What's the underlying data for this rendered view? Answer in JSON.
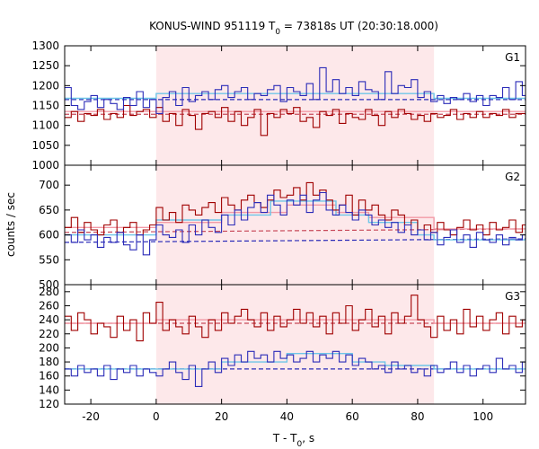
{
  "chart_data": {
    "type": "line",
    "title_main": "KONUS-WIND 951119 T",
    "title_sub": "0",
    "title_rest": " = 73818s UT (20:30:18.000)",
    "xlabel_main": "T - T",
    "xlabel_sub": "0",
    "xlabel_rest": ", s",
    "ylabel": "counts / sec",
    "xlim": [
      -28,
      113
    ],
    "xticks": [
      -20,
      0,
      20,
      40,
      60,
      80,
      100
    ],
    "x_tick_labels": [
      "-20",
      "0",
      "20",
      "40",
      "60",
      "80",
      "100"
    ],
    "shaded_interval": [
      0,
      85
    ],
    "grid": false,
    "legend": "none",
    "colors": {
      "data_red": "#a00000",
      "data_blue": "#2b2bb8",
      "bg_red": "#c84a5a",
      "bg_blue": "#2b2bb8",
      "fit_pink": "#f29aa6",
      "fit_cyan": "#6ec6e8",
      "shade": "#fde8ea"
    },
    "panels": [
      {
        "name": "G1",
        "ylim": [
          1000,
          1300
        ],
        "yticks": [
          1000,
          1050,
          1100,
          1150,
          1200,
          1250,
          1300
        ],
        "y_tick_labels": [
          "1000",
          "1050",
          "1100",
          "1150",
          "1200",
          "1250",
          "1300"
        ],
        "red_x": [
          -28,
          -26,
          -24,
          -22,
          -20,
          -18,
          -16,
          -14,
          -12,
          -10,
          -8,
          -6,
          -4,
          -2,
          0,
          2,
          4,
          6,
          8,
          10,
          12,
          14,
          16,
          18,
          20,
          22,
          24,
          26,
          28,
          30,
          32,
          34,
          36,
          38,
          40,
          42,
          44,
          46,
          48,
          50,
          52,
          54,
          56,
          58,
          60,
          62,
          64,
          66,
          68,
          70,
          72,
          74,
          76,
          78,
          80,
          82,
          84,
          86,
          88,
          90,
          92,
          94,
          96,
          98,
          100,
          102,
          104,
          106,
          108,
          110,
          112
        ],
        "red_y": [
          1120,
          1135,
          1110,
          1130,
          1125,
          1140,
          1115,
          1130,
          1120,
          1150,
          1125,
          1135,
          1140,
          1120,
          1145,
          1110,
          1130,
          1100,
          1140,
          1125,
          1090,
          1130,
          1135,
          1120,
          1145,
          1110,
          1135,
          1100,
          1120,
          1140,
          1075,
          1130,
          1120,
          1140,
          1130,
          1145,
          1110,
          1120,
          1095,
          1135,
          1125,
          1140,
          1105,
          1130,
          1120,
          1115,
          1140,
          1125,
          1100,
          1135,
          1120,
          1140,
          1130,
          1115,
          1125,
          1110,
          1130,
          1120,
          1125,
          1140,
          1115,
          1130,
          1120,
          1135,
          1120,
          1130,
          1125,
          1140,
          1120,
          1130,
          1130
        ],
        "blue_x": [
          -28,
          -26,
          -24,
          -22,
          -20,
          -18,
          -16,
          -14,
          -12,
          -10,
          -8,
          -6,
          -4,
          -2,
          0,
          2,
          4,
          6,
          8,
          10,
          12,
          14,
          16,
          18,
          20,
          22,
          24,
          26,
          28,
          30,
          32,
          34,
          36,
          38,
          40,
          42,
          44,
          46,
          48,
          50,
          52,
          54,
          56,
          58,
          60,
          62,
          64,
          66,
          68,
          70,
          72,
          74,
          76,
          78,
          80,
          82,
          84,
          86,
          88,
          90,
          92,
          94,
          96,
          98,
          100,
          102,
          104,
          106,
          108,
          110,
          112
        ],
        "blue_y": [
          1195,
          1150,
          1140,
          1160,
          1175,
          1145,
          1165,
          1155,
          1140,
          1170,
          1150,
          1185,
          1145,
          1165,
          1130,
          1170,
          1185,
          1150,
          1195,
          1160,
          1175,
          1185,
          1165,
          1190,
          1200,
          1170,
          1185,
          1195,
          1165,
          1180,
          1175,
          1190,
          1200,
          1160,
          1195,
          1185,
          1175,
          1205,
          1165,
          1245,
          1185,
          1215,
          1180,
          1195,
          1175,
          1210,
          1190,
          1185,
          1165,
          1235,
          1180,
          1200,
          1195,
          1215,
          1170,
          1185,
          1160,
          1175,
          1155,
          1170,
          1165,
          1180,
          1160,
          1175,
          1150,
          1175,
          1170,
          1195,
          1165,
          1210,
          1175
        ],
        "red_bg": [
          1128,
          1128
        ],
        "blue_bg": [
          1165,
          1165
        ],
        "red_fit": [
          [
            -28,
            1135
          ],
          [
            113,
            1135
          ]
        ],
        "cyan_fit": [
          [
            -28,
            1168
          ],
          [
            0,
            1168
          ],
          [
            0,
            1180
          ],
          [
            85,
            1180
          ],
          [
            85,
            1168
          ],
          [
            113,
            1168
          ]
        ]
      },
      {
        "name": "G2",
        "ylim": [
          500,
          740
        ],
        "yticks": [
          500,
          550,
          600,
          650,
          700
        ],
        "y_tick_labels": [
          "500",
          "550",
          "600",
          "650",
          "700"
        ],
        "red_x": [
          -28,
          -26,
          -24,
          -22,
          -20,
          -18,
          -16,
          -14,
          -12,
          -10,
          -8,
          -6,
          -4,
          -2,
          0,
          2,
          4,
          6,
          8,
          10,
          12,
          14,
          16,
          18,
          20,
          22,
          24,
          26,
          28,
          30,
          32,
          34,
          36,
          38,
          40,
          42,
          44,
          46,
          48,
          50,
          52,
          54,
          56,
          58,
          60,
          62,
          64,
          66,
          68,
          70,
          72,
          74,
          76,
          78,
          80,
          82,
          84,
          86,
          88,
          90,
          92,
          94,
          96,
          98,
          100,
          102,
          104,
          106,
          108,
          110,
          112
        ],
        "red_y": [
          615,
          635,
          605,
          625,
          610,
          600,
          620,
          630,
          605,
          615,
          625,
          600,
          610,
          620,
          655,
          630,
          645,
          625,
          660,
          650,
          640,
          655,
          665,
          645,
          675,
          660,
          650,
          670,
          680,
          665,
          655,
          670,
          690,
          675,
          680,
          695,
          670,
          705,
          680,
          690,
          670,
          650,
          660,
          680,
          640,
          670,
          650,
          660,
          640,
          630,
          650,
          640,
          620,
          630,
          610,
          620,
          605,
          625,
          610,
          600,
          615,
          630,
          610,
          620,
          600,
          625,
          610,
          615,
          630,
          605,
          620
        ],
        "blue_x": [
          -28,
          -26,
          -24,
          -22,
          -20,
          -18,
          -16,
          -14,
          -12,
          -10,
          -8,
          -6,
          -4,
          -2,
          0,
          2,
          4,
          6,
          8,
          10,
          12,
          14,
          16,
          18,
          20,
          22,
          24,
          26,
          28,
          30,
          32,
          34,
          36,
          38,
          40,
          42,
          44,
          46,
          48,
          50,
          52,
          54,
          56,
          58,
          60,
          62,
          64,
          66,
          68,
          70,
          72,
          74,
          76,
          78,
          80,
          82,
          84,
          86,
          88,
          90,
          92,
          94,
          96,
          98,
          100,
          102,
          104,
          106,
          108,
          110,
          112
        ],
        "blue_y": [
          600,
          585,
          610,
          590,
          600,
          575,
          595,
          585,
          605,
          580,
          570,
          600,
          560,
          590,
          620,
          600,
          595,
          610,
          585,
          620,
          600,
          630,
          615,
          605,
          640,
          620,
          650,
          630,
          655,
          665,
          645,
          680,
          660,
          640,
          670,
          660,
          680,
          645,
          670,
          685,
          650,
          640,
          660,
          645,
          630,
          650,
          640,
          620,
          630,
          615,
          625,
          605,
          620,
          600,
          610,
          590,
          605,
          580,
          595,
          610,
          585,
          600,
          575,
          605,
          590,
          585,
          600,
          580,
          595,
          590,
          600
        ],
        "red_bg": [
          605,
          612
        ],
        "blue_bg": [
          585,
          592
        ],
        "red_fit": [
          [
            -28,
            615
          ],
          [
            0,
            615
          ],
          [
            0,
            625
          ],
          [
            20,
            625
          ],
          [
            20,
            645
          ],
          [
            40,
            645
          ],
          [
            40,
            660
          ],
          [
            55,
            660
          ],
          [
            55,
            645
          ],
          [
            65,
            645
          ],
          [
            65,
            635
          ],
          [
            85,
            635
          ],
          [
            85,
            612
          ],
          [
            113,
            612
          ]
        ],
        "cyan_fit": [
          [
            -28,
            600
          ],
          [
            0,
            600
          ],
          [
            0,
            630
          ],
          [
            20,
            630
          ],
          [
            20,
            640
          ],
          [
            35,
            640
          ],
          [
            35,
            668
          ],
          [
            55,
            668
          ],
          [
            55,
            640
          ],
          [
            65,
            640
          ],
          [
            65,
            625
          ],
          [
            80,
            625
          ],
          [
            80,
            600
          ],
          [
            85,
            600
          ],
          [
            85,
            590
          ],
          [
            113,
            590
          ]
        ]
      },
      {
        "name": "G3",
        "ylim": [
          120,
          290
        ],
        "yticks": [
          120,
          140,
          160,
          180,
          200,
          220,
          240,
          260,
          280
        ],
        "y_tick_labels": [
          "120",
          "140",
          "160",
          "180",
          "200",
          "220",
          "240",
          "260",
          "280"
        ],
        "red_x": [
          -28,
          -26,
          -24,
          -22,
          -20,
          -18,
          -16,
          -14,
          -12,
          -10,
          -8,
          -6,
          -4,
          -2,
          0,
          2,
          4,
          6,
          8,
          10,
          12,
          14,
          16,
          18,
          20,
          22,
          24,
          26,
          28,
          30,
          32,
          34,
          36,
          38,
          40,
          42,
          44,
          46,
          48,
          50,
          52,
          54,
          56,
          58,
          60,
          62,
          64,
          66,
          68,
          70,
          72,
          74,
          76,
          78,
          80,
          82,
          84,
          86,
          88,
          90,
          92,
          94,
          96,
          98,
          100,
          102,
          104,
          106,
          108,
          110,
          112
        ],
        "red_y": [
          245,
          225,
          250,
          240,
          220,
          235,
          230,
          215,
          245,
          225,
          240,
          210,
          250,
          235,
          265,
          225,
          240,
          230,
          220,
          245,
          230,
          215,
          240,
          225,
          250,
          235,
          245,
          255,
          240,
          230,
          250,
          225,
          245,
          230,
          240,
          255,
          235,
          250,
          230,
          245,
          220,
          250,
          235,
          260,
          225,
          240,
          255,
          230,
          245,
          220,
          250,
          235,
          245,
          275,
          240,
          230,
          215,
          245,
          225,
          240,
          220,
          255,
          230,
          245,
          225,
          240,
          250,
          220,
          245,
          230,
          240
        ],
        "blue_x": [
          -28,
          -26,
          -24,
          -22,
          -20,
          -18,
          -16,
          -14,
          -12,
          -10,
          -8,
          -6,
          -4,
          -2,
          0,
          2,
          4,
          6,
          8,
          10,
          12,
          14,
          16,
          18,
          20,
          22,
          24,
          26,
          28,
          30,
          32,
          34,
          36,
          38,
          40,
          42,
          44,
          46,
          48,
          50,
          52,
          54,
          56,
          58,
          60,
          62,
          64,
          66,
          68,
          70,
          72,
          74,
          76,
          78,
          80,
          82,
          84,
          86,
          88,
          90,
          92,
          94,
          96,
          98,
          100,
          102,
          104,
          106,
          108,
          110,
          112
        ],
        "blue_y": [
          170,
          160,
          175,
          165,
          170,
          160,
          175,
          155,
          170,
          165,
          175,
          160,
          170,
          165,
          160,
          170,
          180,
          165,
          155,
          175,
          145,
          170,
          180,
          165,
          185,
          175,
          190,
          180,
          195,
          185,
          190,
          180,
          195,
          185,
          190,
          180,
          185,
          195,
          180,
          190,
          185,
          195,
          180,
          190,
          175,
          185,
          180,
          170,
          175,
          165,
          180,
          170,
          175,
          165,
          170,
          160,
          175,
          165,
          170,
          180,
          165,
          175,
          160,
          170,
          175,
          165,
          185,
          170,
          175,
          165,
          180
        ],
        "red_bg": [
          235,
          235
        ],
        "blue_bg": [
          170,
          170
        ],
        "red_fit": [
          [
            -28,
            235
          ],
          [
            0,
            235
          ],
          [
            0,
            240
          ],
          [
            85,
            240
          ],
          [
            85,
            235
          ],
          [
            113,
            235
          ]
        ],
        "cyan_fit": [
          [
            -28,
            170
          ],
          [
            20,
            170
          ],
          [
            20,
            180
          ],
          [
            40,
            180
          ],
          [
            40,
            192
          ],
          [
            60,
            192
          ],
          [
            60,
            180
          ],
          [
            70,
            180
          ],
          [
            70,
            175
          ],
          [
            85,
            175
          ],
          [
            85,
            170
          ],
          [
            113,
            170
          ]
        ]
      }
    ]
  }
}
